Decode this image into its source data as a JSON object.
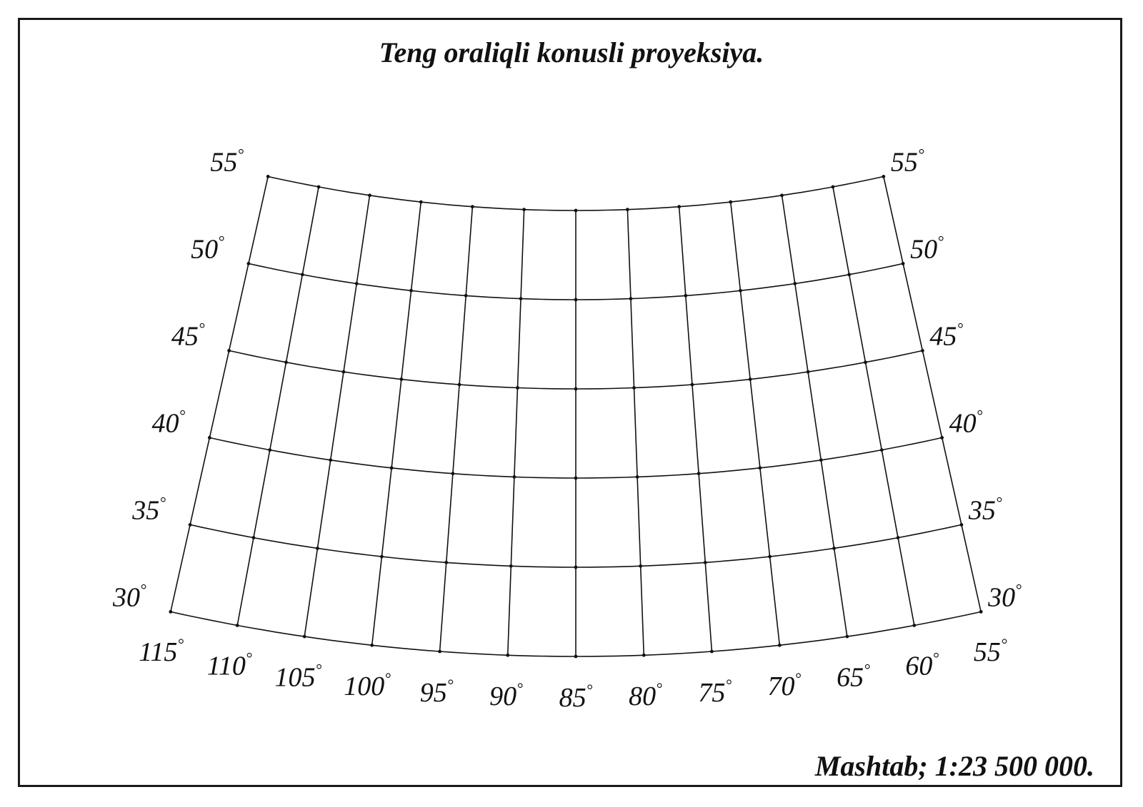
{
  "title": "Teng oraliqli konusli proyeksiya.",
  "scale": "Mashtab; 1:23 500 000.",
  "projection": {
    "latitudes": [
      30,
      35,
      40,
      45,
      50,
      55
    ],
    "longitudes": [
      115,
      110,
      105,
      100,
      95,
      90,
      85,
      80,
      75,
      70,
      65,
      60,
      55
    ],
    "central_meridian": 85,
    "latitude_labels": {
      "left": [
        "30",
        "35",
        "40",
        "45",
        "50",
        "55"
      ],
      "right": [
        "30",
        "35",
        "40",
        "45",
        "50",
        "55"
      ]
    },
    "longitude_labels": [
      "115",
      "110",
      "105",
      "100",
      "95",
      "90",
      "85",
      "80",
      "75",
      "70",
      "65",
      "60",
      "55"
    ],
    "degree_symbol": "°"
  },
  "colors": {
    "lines": "#111111",
    "frame": "#1a1a1a",
    "paper": "#ffffff"
  }
}
